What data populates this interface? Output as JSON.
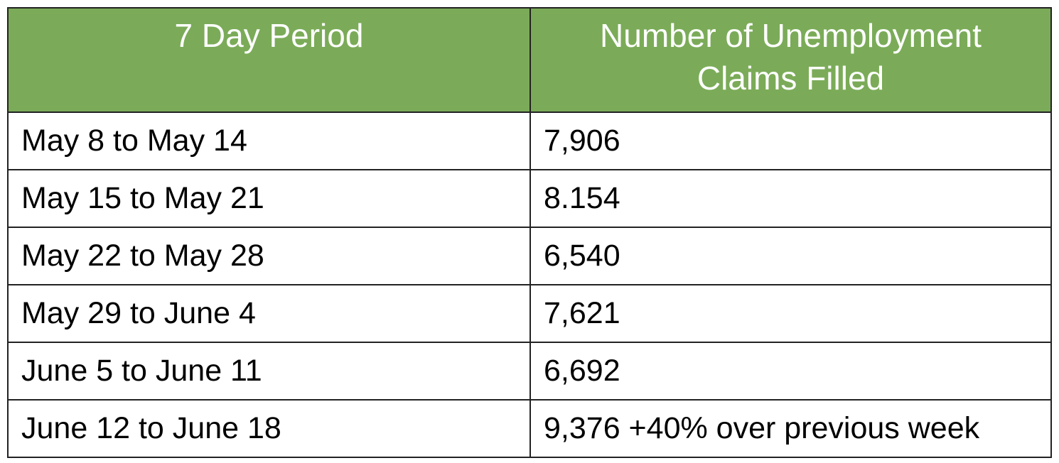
{
  "table": {
    "header": [
      "7 Day Period",
      "Number of Unemployment Claims Filled"
    ],
    "rows": [
      [
        "May 8 to May 14",
        "7,906"
      ],
      [
        "May 15 to May 21",
        "8.154"
      ],
      [
        "May 22 to May 28",
        "6,540"
      ],
      [
        "May 29 to June 4",
        "7,621"
      ],
      [
        "June 5 to June 11",
        "6,692"
      ],
      [
        "June 12 to June 18",
        "9,376 +40% over previous week"
      ]
    ]
  }
}
